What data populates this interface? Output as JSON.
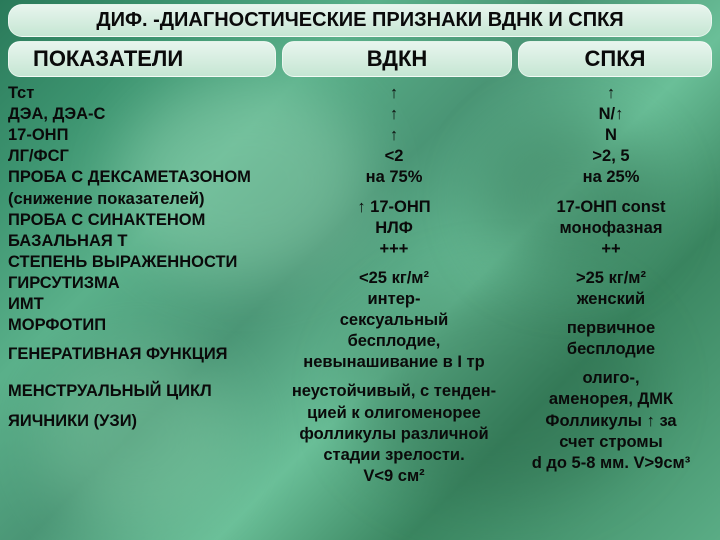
{
  "title": "ДИФ. -ДИАГНОСТИЧЕСКИЕ ПРИЗНАКИ ВДНК И СПКЯ",
  "headers": {
    "col1": "ПОКАЗАТЕЛИ",
    "col2": "ВДКН",
    "col3": "СПКЯ"
  },
  "labels": {
    "r1": "Тст",
    "r2": "ДЭА, ДЭА-С",
    "r3": "17-ОНП",
    "r4": "ЛГ/ФСГ",
    "r5": "ПРОБА С ДЕКСАМЕТАЗОНОМ",
    "r5b": "(снижение показателей)",
    "r6": "ПРОБА С СИНАКТЕНОМ",
    "r7": "БАЗАЛЬНАЯ Т",
    "r8": "СТЕПЕНЬ ВЫРАЖЕННОСТИ",
    "r8b": "ГИРСУТИЗМА",
    "r9": "ИМТ",
    "r10": "МОРФОТИП",
    "r11": "ГЕНЕРАТИВНАЯ ФУНКЦИЯ",
    "r12": "МЕНСТРУАЛЬНЫЙ ЦИКЛ",
    "r13": "ЯИЧНИКИ (УЗИ)"
  },
  "vdkn": {
    "r1": "↑",
    "r2": "↑",
    "r3": "↑",
    "r4": "<2",
    "r5": "на 75%",
    "r6": "↑ 17-ОНП",
    "r7": "НЛФ",
    "r8": "+++",
    "r9": "<25 кг/м²",
    "r10": "интер-\nсексуальный",
    "r11": "бесплодие,\nневынашивание в I тр",
    "r12": "неустойчивый, с тенден-\nцией к олигоменорее",
    "r13": "фолликулы различной\nстадии зрелости.\nV<9 см²"
  },
  "spkya": {
    "r1": "↑",
    "r2": "N/↑",
    "r3": "N",
    "r4": ">2, 5",
    "r5": "на 25%",
    "r6": "17-ОНП const",
    "r7": "монофазная",
    "r8": "++",
    "r9": ">25 кг/м²",
    "r10": "женский",
    "r11": "первичное\nбесплодие",
    "r12": "олиго-,\nаменорея, ДМК",
    "r13": "Фолликулы ↑ за\nсчет стромы\nd до 5-8 мм. V>9см³"
  },
  "colors": {
    "text": "#0a0a0a",
    "pill_light": "#e8f5ee",
    "pill_dark": "#c5e6d3",
    "bg_greens": [
      "#2a7a5a",
      "#3d9470",
      "#5ab08a",
      "#4a9575",
      "#6abf98",
      "#3a8560",
      "#5aac85"
    ]
  },
  "fontsizes": {
    "title": 20,
    "header": 22,
    "body": 16.5
  }
}
